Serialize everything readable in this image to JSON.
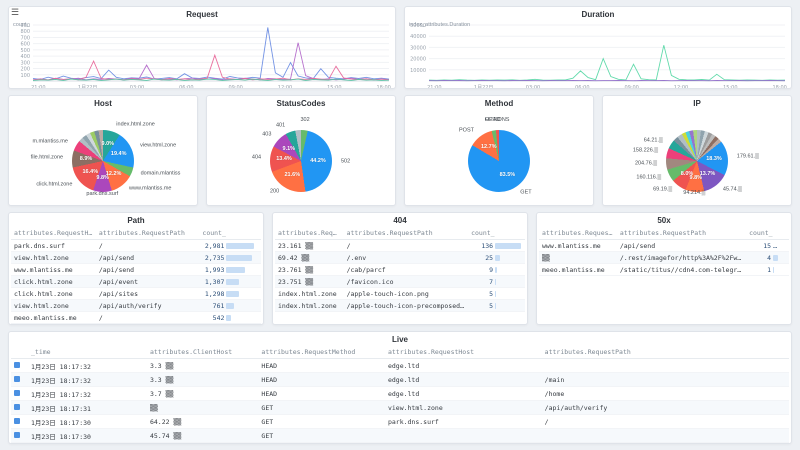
{
  "app": {
    "menu_icon": "☰"
  },
  "chart_data": [
    {
      "type": "line",
      "title": "Request",
      "ylabel": "count_",
      "ylim": [
        0,
        900
      ],
      "yticks": [
        100,
        200,
        300,
        400,
        500,
        600,
        700,
        800,
        900
      ],
      "xticklabels": [
        "21:00",
        "1月22日",
        "03:00",
        "06:00",
        "09:00",
        "12:00",
        "15:00",
        "18:00"
      ],
      "grid": true,
      "legend": "none",
      "series": [
        {
          "name": "",
          "color": "#6b8de3",
          "values": [
            42,
            25,
            61,
            35,
            78,
            45,
            30,
            55,
            70,
            40,
            175,
            60,
            35,
            52,
            45,
            65,
            30,
            42,
            55,
            35,
            118,
            50,
            40,
            62,
            45,
            30,
            72,
            50,
            40,
            60,
            45,
            860,
            130,
            60,
            295,
            80,
            50,
            40,
            198,
            60,
            45,
            35,
            55,
            40,
            60,
            35,
            45,
            30
          ]
        },
        {
          "name": "",
          "color": "#b268c9",
          "values": [
            20,
            35,
            15,
            40,
            25,
            30,
            45,
            20,
            35,
            25,
            42,
            30,
            20,
            45,
            35,
            255,
            40,
            25,
            30,
            20,
            35,
            45,
            25,
            30,
            40,
            20,
            35,
            25,
            45,
            30,
            20,
            42,
            35,
            25,
            30,
            615,
            85,
            40,
            25,
            35,
            20,
            30,
            45,
            25,
            35,
            20,
            30,
            25
          ]
        },
        {
          "name": "",
          "color": "#e8689a",
          "values": [
            15,
            30,
            20,
            45,
            25,
            35,
            20,
            60,
            320,
            40,
            25,
            30,
            20,
            35,
            25,
            45,
            30,
            20,
            40,
            25,
            35,
            20,
            30,
            45,
            415,
            60,
            30,
            25,
            40,
            20,
            35,
            25,
            30,
            45,
            20,
            35,
            25,
            40,
            30,
            20,
            238,
            50,
            30,
            25,
            35,
            20,
            30,
            15
          ]
        },
        {
          "name": "",
          "color": "#52c4a2",
          "values": [
            10,
            20,
            15,
            25,
            10,
            30,
            20,
            15,
            25,
            10,
            20,
            30,
            15,
            25,
            20,
            10,
            30,
            20,
            15,
            25,
            10,
            20,
            15,
            30,
            25,
            10,
            20,
            25,
            15,
            30,
            20,
            10,
            25,
            15,
            20,
            30,
            10,
            25,
            20,
            15,
            30,
            20,
            10,
            25,
            15,
            20,
            10,
            15
          ]
        }
      ]
    },
    {
      "type": "line",
      "title": "Duration",
      "ylabel": "index_attributes.Duration",
      "ylim": [
        0,
        50000
      ],
      "yticks": [
        10000,
        20000,
        30000,
        40000,
        50000
      ],
      "xticklabels": [
        "21:00",
        "1月22日",
        "03:00",
        "06:00",
        "09:00",
        "12:00",
        "15:00",
        "18:00"
      ],
      "grid": true,
      "legend": "none",
      "series": [
        {
          "name": "",
          "color": "#5ad8a6",
          "values": [
            800,
            600,
            900,
            700,
            1200,
            800,
            600,
            1000,
            700,
            900,
            800,
            1100,
            600,
            900,
            1500,
            800,
            700,
            1000,
            900,
            2500,
            9000,
            3000,
            1200,
            20000,
            4000,
            1500,
            1000,
            15000,
            2000,
            1200,
            900,
            32000,
            5000,
            1500,
            1100,
            900,
            1300,
            800,
            6000,
            1200,
            900,
            700,
            1000,
            800,
            600,
            900,
            700,
            800
          ]
        },
        {
          "name": "",
          "color": "#9270ca",
          "values": [
            400,
            300,
            500,
            350,
            450,
            300,
            400,
            500,
            350,
            400,
            300,
            450,
            350,
            500,
            400,
            300,
            450,
            400,
            350,
            500,
            400,
            450,
            300,
            400,
            350,
            500,
            400,
            300,
            450,
            350,
            400,
            500,
            300,
            400,
            450,
            350,
            400,
            300,
            500,
            400,
            350,
            450,
            300,
            400,
            350,
            500,
            400,
            300
          ]
        }
      ]
    },
    {
      "type": "pie",
      "title": "Host",
      "slices": [
        {
          "label": "index.html.zone",
          "value": 9.0,
          "color": "#26a69a"
        },
        {
          "label": "view.html.zone",
          "value": 19.4,
          "color": "#2196f3"
        },
        {
          "label": "domain.mlantiss",
          "value": 4.8,
          "color": "#66bb6a"
        },
        {
          "label": "www.mlantiss.me",
          "value": 12.2,
          "color": "#ff7043"
        },
        {
          "label": "park.dns.surf",
          "value": 9.8,
          "color": "#ab47bc"
        },
        {
          "label": "click.html.zone",
          "value": 16.4,
          "color": "#ef5350"
        },
        {
          "label": "file.html.zone",
          "value": 8.9,
          "color": "#8d6e63"
        },
        {
          "label": "m.mlantiss.me",
          "value": 5.6,
          "color": "#ec407a"
        },
        {
          "label": "",
          "value": 2.4,
          "color": "#b0bec5"
        },
        {
          "label": "",
          "value": 2.3,
          "color": "#90a4ae"
        },
        {
          "label": "",
          "value": 2.3,
          "color": "#cfd8dc"
        },
        {
          "label": "",
          "value": 2.3,
          "color": "#9ccc65"
        },
        {
          "label": "",
          "value": 2.3,
          "color": "#78909c"
        },
        {
          "label": "",
          "value": 2.3,
          "color": "#bcaaa4"
        }
      ]
    },
    {
      "type": "pie",
      "title": "StatusCodes",
      "slices": [
        {
          "label": "302",
          "value": 3.5,
          "color": "#66bb6a"
        },
        {
          "label": "502",
          "value": 44.2,
          "color": "#2196f3"
        },
        {
          "label": "200",
          "value": 21.6,
          "color": "#ff7043"
        },
        {
          "label": "404",
          "value": 13.4,
          "color": "#ef5350"
        },
        {
          "label": "403",
          "value": 9.1,
          "color": "#ab47bc"
        },
        {
          "label": "401",
          "value": 5.2,
          "color": "#26a69a"
        },
        {
          "label": "",
          "value": 3.0,
          "color": "#b0bec5"
        }
      ]
    },
    {
      "type": "pie",
      "title": "Method",
      "slices": [
        {
          "label": "GET",
          "value": 83.5,
          "color": "#2196f3"
        },
        {
          "label": "POST",
          "value": 12.7,
          "color": "#ff7043"
        },
        {
          "label": "HEAD",
          "value": 2.2,
          "color": "#66bb6a"
        },
        {
          "label": "OPTIONS",
          "value": 1.6,
          "color": "#ef5350"
        }
      ]
    },
    {
      "type": "pie",
      "title": "IP",
      "slices": [
        {
          "label": "",
          "value": 2.0,
          "color": "#b0bec5"
        },
        {
          "label": "",
          "value": 2.0,
          "color": "#90a4ae"
        },
        {
          "label": "",
          "value": 2.0,
          "color": "#cfd8dc"
        },
        {
          "label": "",
          "value": 2.0,
          "color": "#9e9e9e"
        },
        {
          "label": "",
          "value": 2.0,
          "color": "#bdbdbd"
        },
        {
          "label": "",
          "value": 2.0,
          "color": "#8d6e63"
        },
        {
          "label": "",
          "value": 2.0,
          "color": "#bcaaa4"
        },
        {
          "label": "179.61.▒",
          "value": 17.9,
          "color": "#2196f3"
        },
        {
          "label": "45.74.▒",
          "value": 13.4,
          "color": "#7e57c2"
        },
        {
          "label": "94.214.▒",
          "value": 9.6,
          "color": "#ff7043"
        },
        {
          "label": "69.19.▒",
          "value": 7.8,
          "color": "#ef5350"
        },
        {
          "label": "160.116.▒",
          "value": 6.4,
          "color": "#66bb6a"
        },
        {
          "label": "204.76.▒",
          "value": 5.8,
          "color": "#a1887f"
        },
        {
          "label": "158.226.▒",
          "value": 5.2,
          "color": "#ec407a"
        },
        {
          "label": "64.21.▒",
          "value": 4.6,
          "color": "#26a69a"
        },
        {
          "label": "",
          "value": 2.6,
          "color": "#78909c"
        },
        {
          "label": "",
          "value": 2.7,
          "color": "#b0bec5"
        },
        {
          "label": "",
          "value": 2.0,
          "color": "#cddc39"
        },
        {
          "label": "",
          "value": 2.0,
          "color": "#4dd0e1"
        },
        {
          "label": "",
          "value": 2.0,
          "color": "#9575cd"
        },
        {
          "label": "",
          "value": 2.0,
          "color": "#aed581"
        }
      ]
    }
  ],
  "panels": {
    "request": {
      "title": "Request"
    },
    "duration": {
      "title": "Duration"
    },
    "host": {
      "title": "Host"
    },
    "status_codes": {
      "title": "StatusCodes"
    },
    "method": {
      "title": "Method"
    },
    "ip": {
      "title": "IP"
    },
    "path_table": {
      "title": "Path",
      "columns": [
        "attributes.RequestHost",
        "attributes.RequestPath",
        "count_"
      ],
      "bar_col": 2,
      "rows": [
        [
          "park.dns.surf",
          "/",
          "2,981"
        ],
        [
          "view.html.zone",
          "/api/send",
          "2,735"
        ],
        [
          "www.mlantiss.me",
          "/api/send",
          "1,993"
        ],
        [
          "click.html.zone",
          "/api/event",
          "1,307"
        ],
        [
          "click.html.zone",
          "/api/sites",
          "1,298"
        ],
        [
          "view.html.zone",
          "/api/auth/verify",
          "761"
        ],
        [
          "meeo.mlantiss.me",
          "/",
          "542"
        ]
      ]
    },
    "table_404": {
      "title": "404",
      "columns": [
        "attributes.RequestHost",
        "attributes.RequestPath",
        "count_"
      ],
      "bar_col": 2,
      "rows": [
        [
          "23.161 ▒▒",
          "/",
          "136"
        ],
        [
          "69.42 ▒▒",
          "/.env",
          "25"
        ],
        [
          "23.761 ▒▒",
          "/cab/parcf",
          "9"
        ],
        [
          "23.751 ▒▒",
          "/favicon.ico",
          "7"
        ],
        [
          "index.html.zone",
          "/apple-touch-icon.png",
          "5"
        ],
        [
          "index.html.zone",
          "/apple-touch-icon-precomposed.png",
          "5"
        ]
      ]
    },
    "table_50x": {
      "title": "50x",
      "columns": [
        "attributes.RequestHost",
        "attributes.RequestPath",
        "count_"
      ],
      "bar_col": 2,
      "rows": [
        [
          "www.mlantiss.me",
          "/api/send",
          "15"
        ],
        [
          "▒▒",
          "/.rest/imagefor/http%3A%2F%2Fwg-image.html.zone%2F▒▒",
          "4"
        ],
        [
          "meeo.mlantiss.me",
          "/static/titus//cdn4.com-telegram.org/file/1E1r/icd6▒",
          "1"
        ]
      ]
    },
    "live": {
      "title": "Live",
      "columns": [
        "_time",
        "attributes.ClientHost",
        "attributes.RequestMethod",
        "attributes.RequestHost",
        "attributes.RequestPath"
      ],
      "row_icon": true,
      "rows": [
        [
          "1月23日 18:17:32",
          "3.3 ▒▒",
          "HEAD",
          "edge.ltd",
          ""
        ],
        [
          "1月23日 18:17:32",
          "3.3 ▒▒",
          "HEAD",
          "edge.ltd",
          "/main"
        ],
        [
          "1月23日 18:17:32",
          "3.7 ▒▒",
          "HEAD",
          "edge.ltd",
          "/home"
        ],
        [
          "1月23日 18:17:31",
          "▒▒",
          "GET",
          "view.html.zone",
          "/api/auth/verify"
        ],
        [
          "1月23日 18:17:30",
          "64.22 ▒▒",
          "GET",
          "park.dns.surf",
          "/"
        ],
        [
          "1月23日 18:17:30",
          "45.74 ▒▒",
          "GET",
          "",
          ""
        ]
      ]
    }
  }
}
